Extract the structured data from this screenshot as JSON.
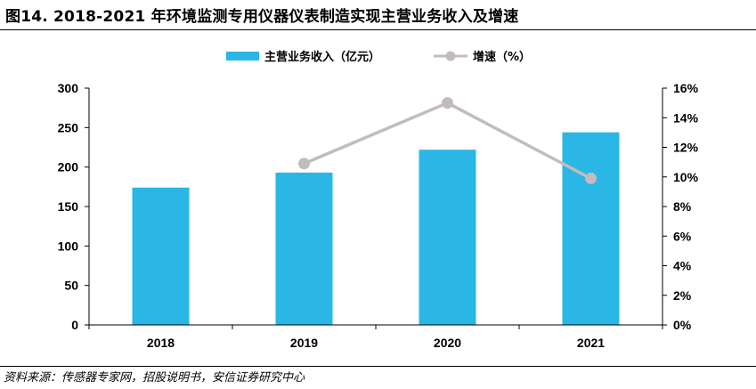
{
  "title": "图14. 2018-2021 年环境监测专用仪器仪表制造实现主营业务收入及增速",
  "source": "资料来源：传感器专家网，招股说明书，安信证券研究中心",
  "colors": {
    "bar": "#2ab7e6",
    "line": "#c3bcbc",
    "axis": "#000000"
  },
  "chart_data": {
    "type": "bar+line",
    "categories": [
      "2018",
      "2019",
      "2020",
      "2021"
    ],
    "series": [
      {
        "name": "主营业务收入（亿元）",
        "type": "bar",
        "axis": "left",
        "values": [
          174,
          193,
          222,
          244
        ]
      },
      {
        "name": "增速（%）",
        "type": "line",
        "axis": "right",
        "values": [
          null,
          10.9,
          15.0,
          9.9
        ]
      }
    ],
    "left_axis": {
      "min": 0,
      "max": 300,
      "ticks": [
        "0",
        "50",
        "100",
        "150",
        "200",
        "250",
        "300"
      ]
    },
    "right_axis": {
      "min": 0,
      "max": 16,
      "ticks": [
        "0%",
        "2%",
        "4%",
        "6%",
        "8%",
        "10%",
        "12%",
        "14%",
        "16%"
      ]
    },
    "legend_position": "top-center"
  }
}
